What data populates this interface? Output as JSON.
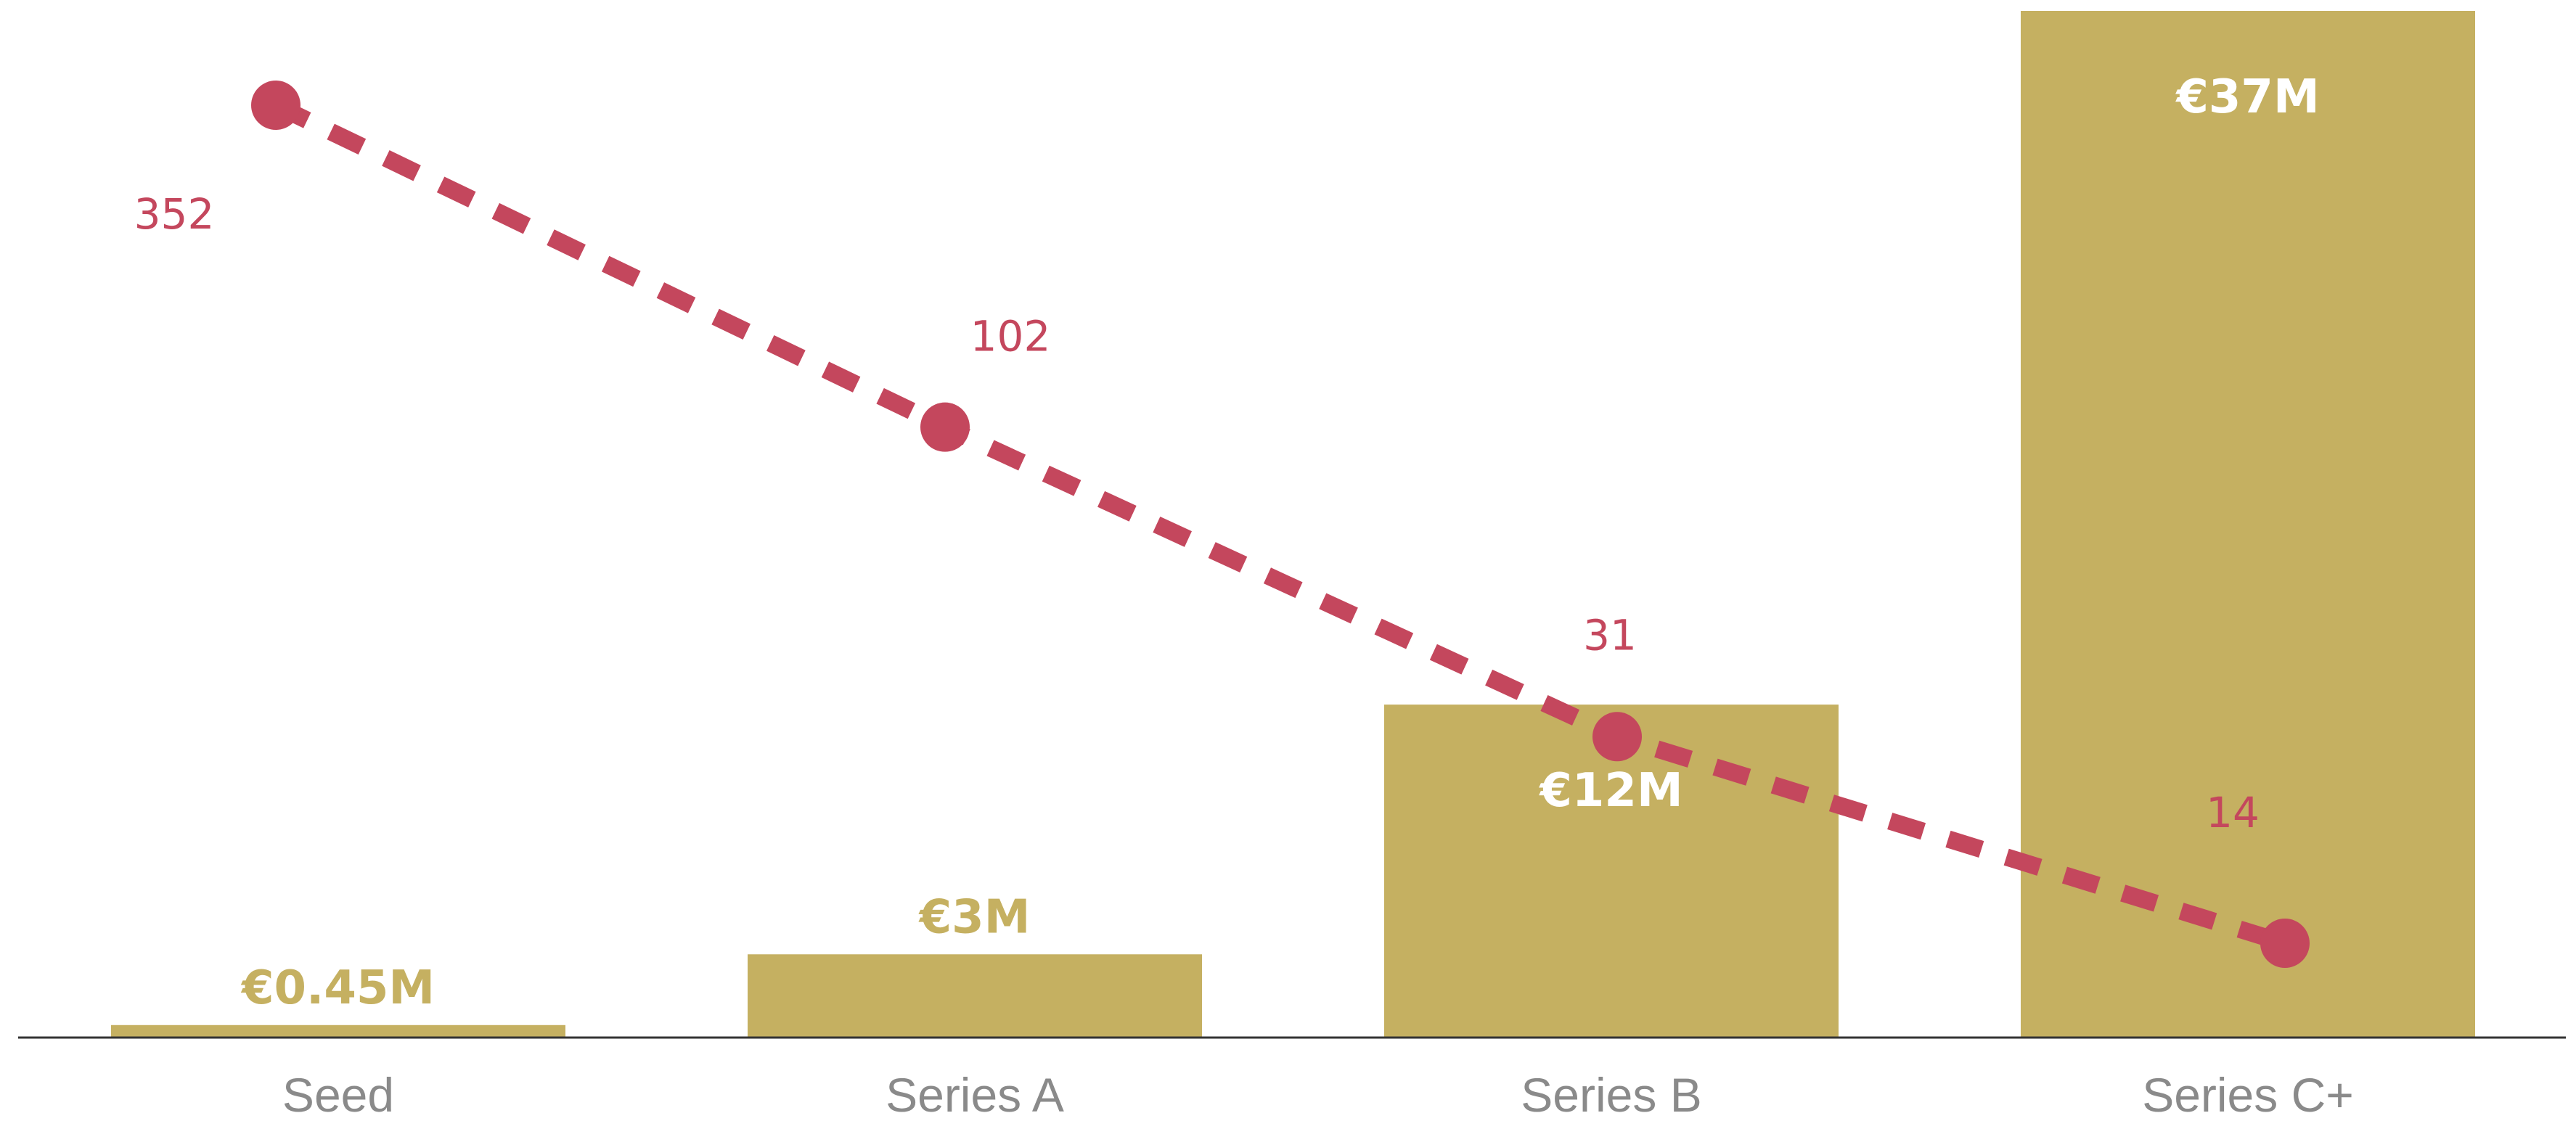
{
  "chart_data": {
    "type": "bar",
    "categories": [
      "Seed",
      "Series A",
      "Series B",
      "Series C+"
    ],
    "series": [
      {
        "type": "bar",
        "values": [
          0.45,
          3,
          12,
          37
        ],
        "value_labels": [
          "€0.45M",
          "€3M",
          "€12M",
          "€37M"
        ],
        "color": "#c5b061"
      },
      {
        "type": "line",
        "style": "dashed",
        "values": [
          352,
          102,
          31,
          14
        ],
        "value_labels": [
          "352",
          "102",
          "31",
          "14"
        ],
        "color": "#c4475d"
      }
    ],
    "title": "",
    "xlabel": "",
    "ylabel": "",
    "grid": false,
    "legend": "none",
    "colors": {
      "axis": "#333333",
      "category_text": "#8a8a8a",
      "bar_label_inside": "#ffffff"
    }
  }
}
